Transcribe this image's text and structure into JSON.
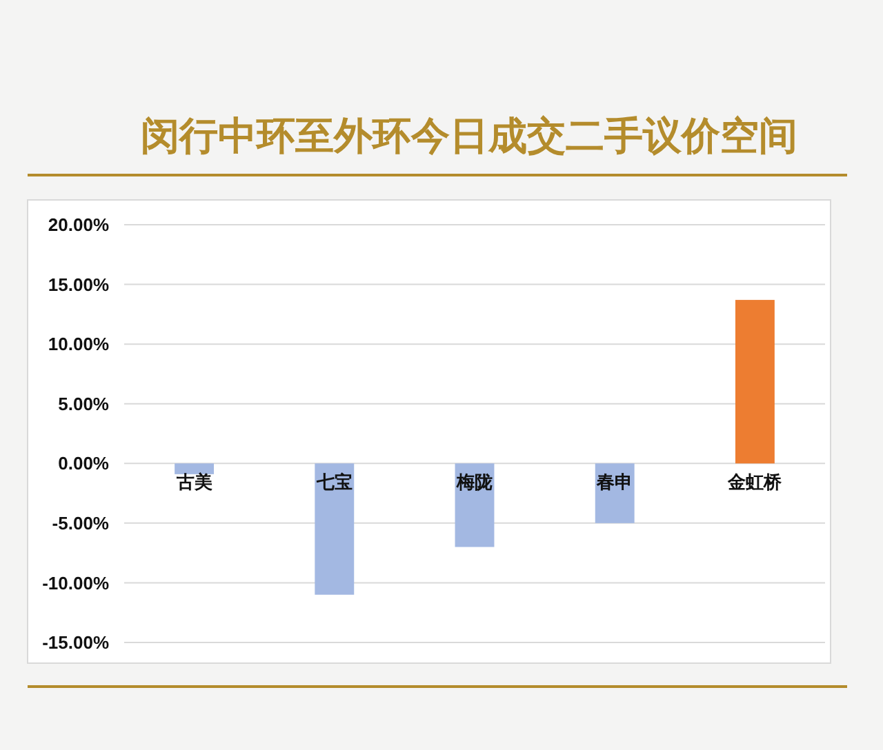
{
  "chart_data": {
    "type": "bar",
    "title": "闵行中环至外环今日成交二手议价空间",
    "categories": [
      "古美",
      "七宝",
      "梅陇",
      "春申",
      "金虹桥"
    ],
    "values": [
      -0.9,
      -11,
      -7,
      -5,
      13.7
    ],
    "colors": [
      "#a3b8e2",
      "#a3b8e2",
      "#a3b8e2",
      "#a3b8e2",
      "#ed7d31"
    ],
    "ylim": [
      -15,
      20
    ],
    "yticks": [
      {
        "value": -15,
        "label": "-15.00%"
      },
      {
        "value": -10,
        "label": "-10.00%"
      },
      {
        "value": -5,
        "label": "-5.00%"
      },
      {
        "value": 0,
        "label": "0.00%"
      },
      {
        "value": 5,
        "label": "5.00%"
      },
      {
        "value": 10,
        "label": "10.00%"
      },
      {
        "value": 15,
        "label": "15.00%"
      },
      {
        "value": 20,
        "label": "20.00%"
      }
    ],
    "grid": "y"
  }
}
